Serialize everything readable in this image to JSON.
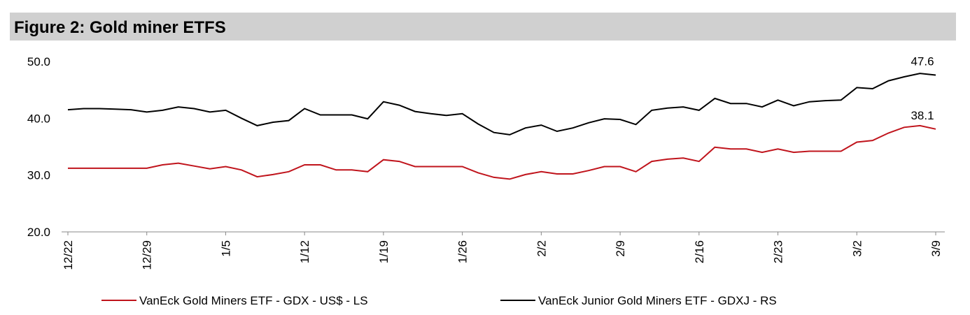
{
  "chart_data": {
    "type": "line",
    "title": "Figure 2: Gold miner ETFS",
    "categories": [
      "12/22",
      null,
      null,
      null,
      null,
      "12/29",
      null,
      null,
      null,
      null,
      "1/5",
      null,
      null,
      null,
      null,
      "1/12",
      null,
      null,
      null,
      null,
      "1/19",
      null,
      null,
      null,
      null,
      "1/26",
      null,
      null,
      null,
      null,
      "2/2",
      null,
      null,
      null,
      null,
      "2/9",
      null,
      null,
      null,
      null,
      "2/16",
      null,
      null,
      null,
      null,
      "2/23",
      null,
      null,
      null,
      null,
      "3/2",
      null,
      null,
      null,
      null,
      "3/9"
    ],
    "series": [
      {
        "name": "VanEck Gold Miners ETF  - GDX  - US$ - LS",
        "color": "#c0141c",
        "values": [
          31.2,
          31.2,
          31.2,
          31.2,
          31.2,
          31.2,
          31.8,
          32.1,
          31.6,
          31.1,
          31.5,
          30.9,
          29.7,
          30.1,
          30.6,
          31.8,
          31.8,
          30.9,
          30.9,
          30.6,
          32.7,
          32.4,
          31.5,
          31.5,
          31.5,
          31.5,
          30.4,
          29.6,
          29.3,
          30.1,
          30.6,
          30.2,
          30.2,
          30.8,
          31.5,
          31.5,
          30.6,
          32.4,
          32.8,
          33.0,
          32.4,
          34.9,
          34.6,
          34.6,
          34.0,
          34.6,
          34.0,
          34.2,
          34.2,
          34.2,
          35.8,
          36.1,
          37.4,
          38.4,
          38.7,
          38.1
        ]
      },
      {
        "name": "VanEck Junior Gold Miners ETF - GDXJ - RS",
        "color": "#000000",
        "values": [
          41.5,
          41.7,
          41.7,
          41.6,
          41.5,
          41.1,
          41.4,
          42.0,
          41.7,
          41.1,
          41.4,
          40.0,
          38.7,
          39.3,
          39.6,
          41.7,
          40.6,
          40.6,
          40.6,
          39.9,
          42.9,
          42.3,
          41.2,
          40.8,
          40.5,
          40.8,
          39.0,
          37.5,
          37.1,
          38.3,
          38.8,
          37.7,
          38.3,
          39.2,
          39.9,
          39.8,
          38.9,
          41.4,
          41.8,
          42.0,
          41.4,
          43.5,
          42.6,
          42.6,
          42.0,
          43.2,
          42.2,
          42.9,
          43.1,
          43.2,
          45.4,
          45.2,
          46.6,
          47.3,
          47.9,
          47.6
        ]
      }
    ],
    "annotations": [
      "47.6",
      "38.1"
    ],
    "ylim": [
      20,
      50
    ],
    "yticks": [
      {
        "value": 20,
        "label": "20.0"
      },
      {
        "value": 30,
        "label": "30.0"
      },
      {
        "value": 40,
        "label": "40.0"
      },
      {
        "value": 50,
        "label": "50.0"
      }
    ]
  }
}
